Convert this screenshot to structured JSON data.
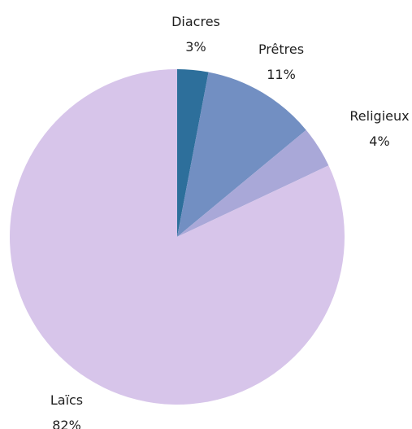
{
  "chart_data": {
    "type": "pie",
    "title": "",
    "start_angle_deg": 0,
    "direction": "clockwise",
    "slices": [
      {
        "label": "Diacres",
        "value": 3,
        "value_label": "3%",
        "color": "#2d6f9b"
      },
      {
        "label": "Prêtres",
        "value": 11,
        "value_label": "11%",
        "color": "#728fc2"
      },
      {
        "label": "Religieux",
        "value": 4,
        "value_label": "4%",
        "color": "#a9a8d8"
      },
      {
        "label": "Laïcs",
        "value": 82,
        "value_label": "82%",
        "color": "#d7c5ea"
      }
    ],
    "legend": "none"
  }
}
